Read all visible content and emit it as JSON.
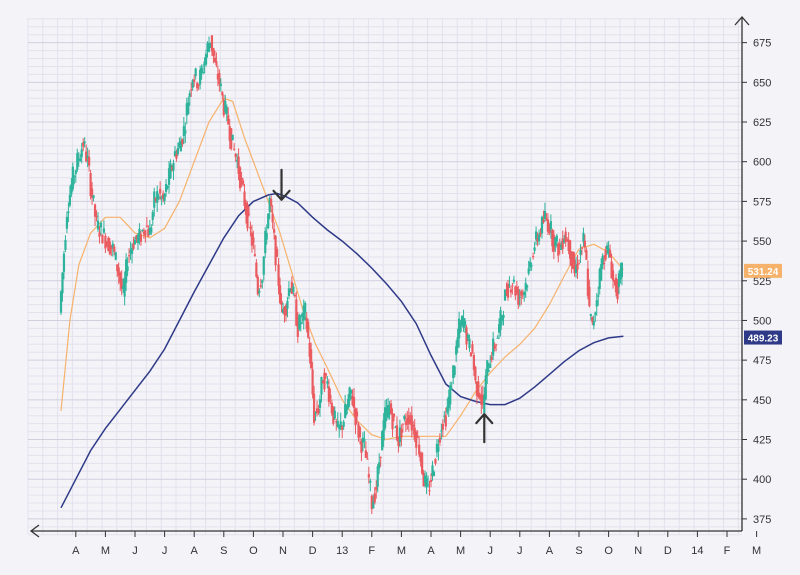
{
  "chart_data": {
    "type": "candlestick",
    "title": "",
    "xlabel": "",
    "ylabel": "",
    "grid": true,
    "ylim": [
      368,
      688
    ],
    "y_ticks": [
      375,
      400,
      425,
      450,
      475,
      500,
      525,
      550,
      575,
      600,
      625,
      650,
      675
    ],
    "x_ticks": [
      "A",
      "M",
      "J",
      "J",
      "A",
      "S",
      "O",
      "N",
      "D",
      "13",
      "F",
      "M",
      "A",
      "M",
      "J",
      "J",
      "A",
      "S",
      "O",
      "N",
      "D",
      "14",
      "F",
      "M"
    ],
    "x_domain": [
      0,
      24
    ],
    "colors": {
      "up": "#2db39b",
      "down": "#ea5b60",
      "ma_short": "#f6b26b",
      "ma_long": "#2e3a87",
      "grid_minor": "#e3e1ec",
      "grid_major": "#d2cfdd",
      "background": "#f4f3f8"
    },
    "price_path": [
      [
        0.0,
        505
      ],
      [
        0.1,
        530
      ],
      [
        0.25,
        570
      ],
      [
        0.45,
        590
      ],
      [
        0.6,
        600
      ],
      [
        0.8,
        612
      ],
      [
        0.95,
        600
      ],
      [
        1.05,
        585
      ],
      [
        1.25,
        560
      ],
      [
        1.45,
        555
      ],
      [
        1.6,
        550
      ],
      [
        1.8,
        545
      ],
      [
        2.0,
        530
      ],
      [
        2.15,
        515
      ],
      [
        2.3,
        540
      ],
      [
        2.5,
        550
      ],
      [
        2.7,
        552
      ],
      [
        2.9,
        560
      ],
      [
        3.05,
        555
      ],
      [
        3.2,
        575
      ],
      [
        3.35,
        580
      ],
      [
        3.5,
        575
      ],
      [
        3.7,
        590
      ],
      [
        3.9,
        605
      ],
      [
        4.05,
        610
      ],
      [
        4.2,
        620
      ],
      [
        4.35,
        640
      ],
      [
        4.5,
        655
      ],
      [
        4.7,
        650
      ],
      [
        4.85,
        660
      ],
      [
        5.0,
        672
      ],
      [
        5.1,
        678
      ],
      [
        5.25,
        660
      ],
      [
        5.4,
        650
      ],
      [
        5.55,
        635
      ],
      [
        5.7,
        625
      ],
      [
        5.85,
        610
      ],
      [
        6.0,
        600
      ],
      [
        6.1,
        590
      ],
      [
        6.25,
        575
      ],
      [
        6.4,
        560
      ],
      [
        6.55,
        545
      ],
      [
        6.7,
        520
      ],
      [
        6.85,
        530
      ],
      [
        7.0,
        560
      ],
      [
        7.1,
        575
      ],
      [
        7.25,
        550
      ],
      [
        7.4,
        525
      ],
      [
        7.5,
        505
      ],
      [
        7.65,
        510
      ],
      [
        7.8,
        525
      ],
      [
        7.95,
        510
      ],
      [
        8.05,
        495
      ],
      [
        8.15,
        500
      ],
      [
        8.3,
        505
      ],
      [
        8.45,
        480
      ],
      [
        8.6,
        440
      ],
      [
        8.75,
        445
      ],
      [
        8.9,
        465
      ],
      [
        9.05,
        460
      ],
      [
        9.25,
        440
      ],
      [
        9.4,
        430
      ],
      [
        9.55,
        435
      ],
      [
        9.7,
        445
      ],
      [
        9.85,
        455
      ],
      [
        10.0,
        440
      ],
      [
        10.15,
        425
      ],
      [
        10.3,
        420
      ],
      [
        10.45,
        400
      ],
      [
        10.55,
        385
      ],
      [
        10.7,
        395
      ],
      [
        10.85,
        420
      ],
      [
        11.0,
        440
      ],
      [
        11.15,
        445
      ],
      [
        11.3,
        435
      ],
      [
        11.45,
        425
      ],
      [
        11.6,
        435
      ],
      [
        11.8,
        440
      ],
      [
        12.0,
        430
      ],
      [
        12.15,
        420
      ],
      [
        12.3,
        400
      ],
      [
        12.45,
        392
      ],
      [
        12.6,
        405
      ],
      [
        12.75,
        420
      ],
      [
        12.9,
        435
      ],
      [
        13.05,
        440
      ],
      [
        13.2,
        455
      ],
      [
        13.35,
        475
      ],
      [
        13.5,
        495
      ],
      [
        13.65,
        500
      ],
      [
        13.8,
        485
      ],
      [
        13.95,
        480
      ],
      [
        14.05,
        460
      ],
      [
        14.2,
        455
      ],
      [
        14.3,
        445
      ],
      [
        14.45,
        470
      ],
      [
        14.6,
        480
      ],
      [
        14.8,
        490
      ],
      [
        14.95,
        505
      ],
      [
        15.1,
        520
      ],
      [
        15.3,
        525
      ],
      [
        15.5,
        515
      ],
      [
        15.7,
        520
      ],
      [
        15.85,
        530
      ],
      [
        16.0,
        545
      ],
      [
        16.2,
        555
      ],
      [
        16.4,
        565
      ],
      [
        16.55,
        560
      ],
      [
        16.7,
        550
      ],
      [
        16.9,
        545
      ],
      [
        17.05,
        555
      ],
      [
        17.25,
        545
      ],
      [
        17.4,
        530
      ],
      [
        17.55,
        540
      ],
      [
        17.7,
        550
      ],
      [
        17.8,
        535
      ],
      [
        17.9,
        505
      ],
      [
        18.0,
        495
      ],
      [
        18.15,
        515
      ],
      [
        18.3,
        535
      ],
      [
        18.45,
        545
      ],
      [
        18.6,
        540
      ],
      [
        18.7,
        525
      ],
      [
        18.85,
        520
      ],
      [
        19.0,
        530
      ]
    ],
    "series": [
      {
        "name": "",
        "points": [
          [
            0,
            443
          ],
          [
            0.3,
            500
          ],
          [
            0.6,
            535
          ],
          [
            1.0,
            555
          ],
          [
            1.5,
            565
          ],
          [
            2.0,
            565
          ],
          [
            2.5,
            555
          ],
          [
            3.0,
            552
          ],
          [
            3.5,
            558
          ],
          [
            4.0,
            575
          ],
          [
            4.5,
            600
          ],
          [
            5.0,
            625
          ],
          [
            5.5,
            640
          ],
          [
            5.8,
            638
          ],
          [
            6.2,
            615
          ],
          [
            6.6,
            595
          ],
          [
            7.0,
            575
          ],
          [
            7.4,
            555
          ],
          [
            7.8,
            530
          ],
          [
            8.2,
            505
          ],
          [
            8.6,
            485
          ],
          [
            9.0,
            470
          ],
          [
            9.5,
            450
          ],
          [
            10.0,
            437
          ],
          [
            10.5,
            428
          ],
          [
            11.0,
            425
          ],
          [
            11.5,
            427
          ],
          [
            12.0,
            427
          ],
          [
            12.5,
            427
          ],
          [
            13.0,
            427
          ],
          [
            13.5,
            440
          ],
          [
            14.0,
            455
          ],
          [
            14.5,
            467
          ],
          [
            15.0,
            477
          ],
          [
            15.5,
            485
          ],
          [
            16.0,
            495
          ],
          [
            16.5,
            510
          ],
          [
            17.0,
            528
          ],
          [
            17.5,
            545
          ],
          [
            18.0,
            548
          ],
          [
            18.5,
            543
          ],
          [
            19.0,
            532
          ]
        ]
      },
      {
        "name": "",
        "points": [
          [
            0,
            382
          ],
          [
            0.5,
            400
          ],
          [
            1.0,
            418
          ],
          [
            1.5,
            432
          ],
          [
            2.0,
            444
          ],
          [
            2.5,
            456
          ],
          [
            3.0,
            468
          ],
          [
            3.5,
            482
          ],
          [
            4.0,
            500
          ],
          [
            4.5,
            518
          ],
          [
            5.0,
            535
          ],
          [
            5.5,
            552
          ],
          [
            6.0,
            566
          ],
          [
            6.5,
            575
          ],
          [
            7.0,
            579
          ],
          [
            7.3,
            580
          ],
          [
            7.6,
            578
          ],
          [
            8.0,
            574
          ],
          [
            8.5,
            565
          ],
          [
            9.0,
            557
          ],
          [
            9.5,
            550
          ],
          [
            10.0,
            542
          ],
          [
            10.5,
            533
          ],
          [
            11.0,
            523
          ],
          [
            11.5,
            512
          ],
          [
            12.0,
            498
          ],
          [
            12.5,
            478
          ],
          [
            13.0,
            460
          ],
          [
            13.5,
            452
          ],
          [
            14.0,
            449
          ],
          [
            14.5,
            447
          ],
          [
            15.0,
            447
          ],
          [
            15.5,
            451
          ],
          [
            16.0,
            458
          ],
          [
            16.5,
            466
          ],
          [
            17.0,
            474
          ],
          [
            17.5,
            481
          ],
          [
            18.0,
            486
          ],
          [
            18.5,
            489
          ],
          [
            19.0,
            490
          ]
        ]
      }
    ],
    "price_labels": [
      {
        "value": 531.24,
        "text": "531.24",
        "color": "#f6b26b"
      },
      {
        "value": 489.23,
        "text": "489.23",
        "color": "#2e3a87"
      }
    ],
    "annotations": [
      {
        "type": "arrow-down",
        "x": 7.45,
        "y": 576
      },
      {
        "type": "arrow-up",
        "x": 14.3,
        "y": 441
      }
    ]
  }
}
